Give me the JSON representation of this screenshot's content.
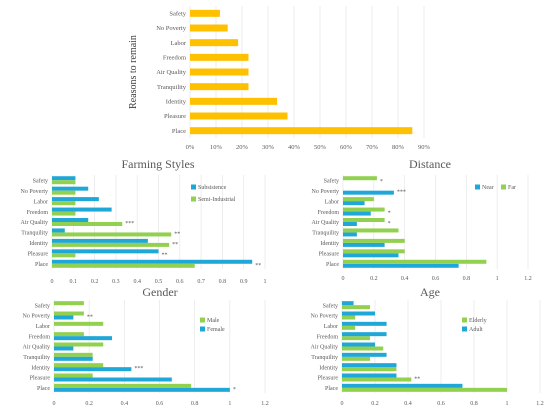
{
  "colors": {
    "gold": "#FFC000",
    "blue": "#1FA7D8",
    "green": "#92D050",
    "grid": "#E6E6E6",
    "text": "#595959"
  },
  "chart_data": [
    {
      "id": "top",
      "type": "bar",
      "orientation": "horizontal",
      "title": "",
      "ylabel": "Reasons to remain",
      "xlim": [
        0,
        0.9
      ],
      "x_ticks": [
        "0%",
        "10%",
        "20%",
        "30%",
        "40%",
        "50%",
        "60%",
        "70%",
        "80%",
        "90%"
      ],
      "categories": [
        "Place",
        "Pleasure",
        "Identity",
        "Tranquility",
        "Air Quality",
        "Freedom",
        "Labor",
        "No Poverty",
        "Safety"
      ],
      "series": [
        {
          "values": [
            0.855,
            0.375,
            0.335,
            0.225,
            0.225,
            0.225,
            0.185,
            0.145,
            0.115
          ]
        }
      ],
      "legend": "none",
      "grid": "vertical"
    },
    {
      "id": "farming",
      "type": "bar",
      "orientation": "horizontal",
      "title": "Farming Styles",
      "xlim": [
        0,
        1
      ],
      "x_ticks": [
        "0",
        "0.1",
        "0.2",
        "0.3",
        "0.4",
        "0.5",
        "0.6",
        "0.7",
        "0.8",
        "0.9",
        "1"
      ],
      "categories": [
        "Place",
        "Pleasure",
        "Identity",
        "Tranquility",
        "Air Quality",
        "Freedom",
        "Labor",
        "No Poverty",
        "Safety"
      ],
      "series": [
        {
          "name": "Subsistence",
          "values": [
            0.94,
            0.5,
            0.45,
            0.06,
            0.17,
            0.28,
            0.22,
            0.17,
            0.11
          ]
        },
        {
          "name": "Semi-Industrial",
          "values": [
            0.67,
            0.11,
            0.55,
            0.56,
            0.33,
            0.11,
            0.11,
            0.11,
            0.11
          ]
        }
      ],
      "annotations": [
        {
          "category": "Place",
          "text": "**"
        },
        {
          "category": "Pleasure",
          "text": "**"
        },
        {
          "category": "Identity",
          "text": "**"
        },
        {
          "category": "Tranquility",
          "text": "**"
        },
        {
          "category": "Air Quality",
          "text": "***"
        }
      ],
      "legend": "right",
      "grid": "vertical"
    },
    {
      "id": "distance",
      "type": "bar",
      "orientation": "horizontal",
      "title": "Distance",
      "xlim": [
        0,
        1.2
      ],
      "x_ticks": [
        "0",
        "0.2",
        "0.4",
        "0.6",
        "0.8",
        "1",
        "1.2"
      ],
      "categories": [
        "Place",
        "Pleasure",
        "Identity",
        "Tranquility",
        "Air Quality",
        "Freedom",
        "Labor",
        "No Poverty",
        "Safety"
      ],
      "series": [
        {
          "name": "Near",
          "values": [
            0.75,
            0.36,
            0.27,
            0.09,
            0.09,
            0.18,
            0.14,
            0.33,
            0.0
          ]
        },
        {
          "name": "Far",
          "values": [
            0.93,
            0.4,
            0.4,
            0.36,
            0.27,
            0.27,
            0.2,
            0.0,
            0.22
          ]
        }
      ],
      "annotations": [
        {
          "category": "Air Quality",
          "text": "*"
        },
        {
          "category": "Freedom",
          "text": "*"
        },
        {
          "category": "No Poverty",
          "text": "***"
        },
        {
          "category": "Safety",
          "text": "*"
        }
      ],
      "legend": "right",
      "grid": "vertical"
    },
    {
      "id": "gender",
      "type": "bar",
      "orientation": "horizontal",
      "title": "Gender",
      "xlim": [
        0,
        1.2
      ],
      "x_ticks": [
        "0",
        "0.2",
        "0.4",
        "0.6",
        "0.8",
        "1",
        "1.2"
      ],
      "categories": [
        "Place",
        "Pleasure",
        "Identity",
        "Tranquility",
        "Air Quality",
        "Freedom",
        "Labor",
        "No Poverty",
        "Safety"
      ],
      "series": [
        {
          "name": "Male",
          "values": [
            0.78,
            0.22,
            0.28,
            0.22,
            0.28,
            0.17,
            0.28,
            0.17,
            0.17
          ]
        },
        {
          "name": "Female",
          "values": [
            1.0,
            0.67,
            0.44,
            0.22,
            0.11,
            0.33,
            0.0,
            0.11,
            0.0
          ]
        }
      ],
      "annotations": [
        {
          "category": "Place",
          "text": "*"
        },
        {
          "category": "Identity",
          "text": "***"
        },
        {
          "category": "No Poverty",
          "text": "**"
        }
      ],
      "legend": "right",
      "grid": "vertical"
    },
    {
      "id": "age",
      "type": "bar",
      "orientation": "horizontal",
      "title": "Age",
      "xlim": [
        0,
        1.2
      ],
      "x_ticks": [
        "0",
        "0.2",
        "0.4",
        "0.6",
        "0.8",
        "1",
        "1.2"
      ],
      "categories": [
        "Place",
        "Pleasure",
        "Identity",
        "Tranquility",
        "Air Quality",
        "Freedom",
        "Labor",
        "No Poverty",
        "Safety"
      ],
      "series": [
        {
          "name": "Elderly",
          "values": [
            1.0,
            0.42,
            0.33,
            0.17,
            0.25,
            0.17,
            0.08,
            0.08,
            0.17
          ]
        },
        {
          "name": "Adult",
          "values": [
            0.73,
            0.33,
            0.33,
            0.27,
            0.2,
            0.27,
            0.27,
            0.2,
            0.07
          ]
        }
      ],
      "annotations": [
        {
          "category": "Pleasure",
          "text": "**"
        }
      ],
      "legend": "right",
      "grid": "vertical"
    }
  ]
}
